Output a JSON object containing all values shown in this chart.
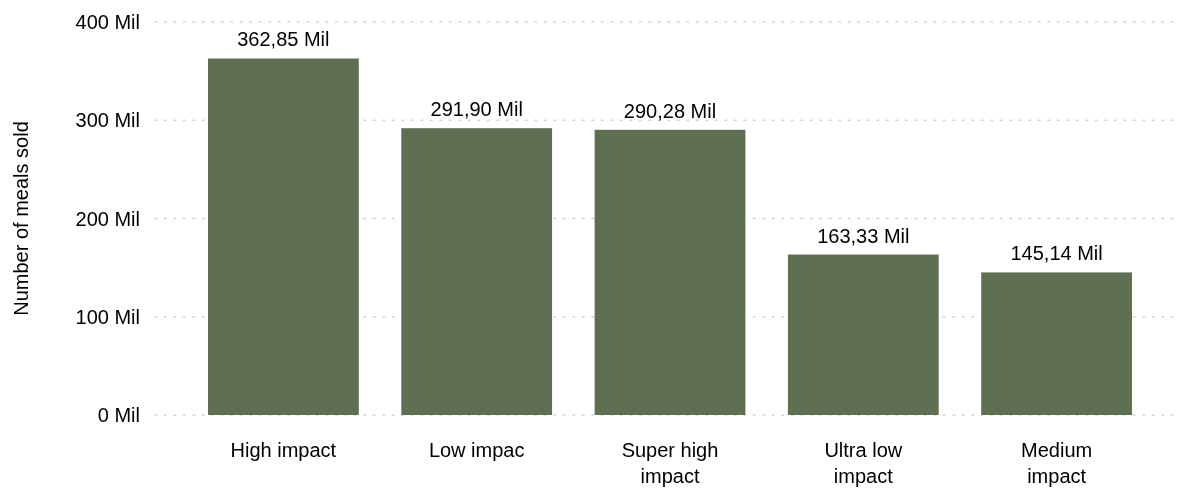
{
  "chart_data": {
    "type": "bar",
    "ylabel": "Number of meals sold",
    "categories": [
      "High impact",
      "Low impac",
      "Super high impact",
      "Ultra low impact",
      "Medium impact"
    ],
    "values": [
      362.85,
      291.9,
      290.28,
      163.33,
      145.14
    ],
    "value_labels": [
      "362,85 Mil",
      "291,90 Mil",
      "290,28 Mil",
      "163,33 Mil",
      "145,14 Mil"
    ],
    "color": "#5f7052",
    "ylim": [
      0,
      400
    ],
    "yticks": [
      {
        "value": 0,
        "label": "0 Mil"
      },
      {
        "value": 100,
        "label": "100 Mil"
      },
      {
        "value": 200,
        "label": "200 Mil"
      },
      {
        "value": 300,
        "label": "300 Mil"
      },
      {
        "value": 400,
        "label": "400 Mil"
      }
    ],
    "grid": "y"
  }
}
